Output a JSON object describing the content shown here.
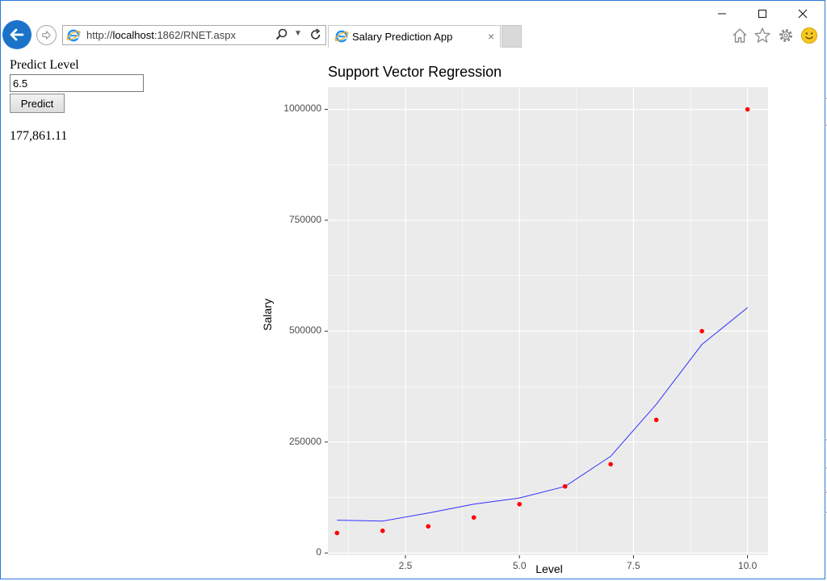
{
  "window": {
    "controls": [
      "minimize",
      "maximize",
      "close"
    ]
  },
  "browser": {
    "back_icon": "arrow-left-icon",
    "forward_icon": "arrow-right-icon",
    "address": {
      "prefix": "http://",
      "host": "localhost",
      "path": ":1862/RNET.aspx"
    },
    "tab": {
      "label": "Salary Prediction App",
      "close": "×"
    },
    "toolbar_icons": [
      "home-icon",
      "star-icon",
      "gear-icon",
      "smiley-icon"
    ]
  },
  "form": {
    "label": "Predict Level",
    "input_value": "6.5",
    "button_label": "Predict",
    "result": "177,861.11"
  },
  "chart_data": {
    "type": "scatter",
    "title": "Support Vector Regression",
    "xlabel": "Level",
    "ylabel": "Salary",
    "xlim": [
      0.8,
      10.45
    ],
    "ylim": [
      -5000,
      1050000
    ],
    "x_ticks": [
      "2.5",
      "5.0",
      "7.5",
      "10.0"
    ],
    "y_ticks": [
      "0",
      "250000",
      "500000",
      "750000",
      "1000000"
    ],
    "grid": true,
    "points": {
      "color": "#ff0000",
      "x": [
        1,
        2,
        3,
        4,
        5,
        6,
        7,
        8,
        9,
        10
      ],
      "y": [
        45000,
        50000,
        60000,
        80000,
        110000,
        150000,
        200000,
        300000,
        500000,
        1000000
      ]
    },
    "line": {
      "color": "#3333ff",
      "x": [
        1,
        2,
        3,
        4,
        5,
        6,
        7,
        8,
        9,
        10
      ],
      "y": [
        74000,
        72000,
        90000,
        110000,
        124000,
        150000,
        218000,
        335000,
        470000,
        553000
      ]
    },
    "panel_color": "#ebebeb",
    "grid_color": "#ffffff"
  }
}
